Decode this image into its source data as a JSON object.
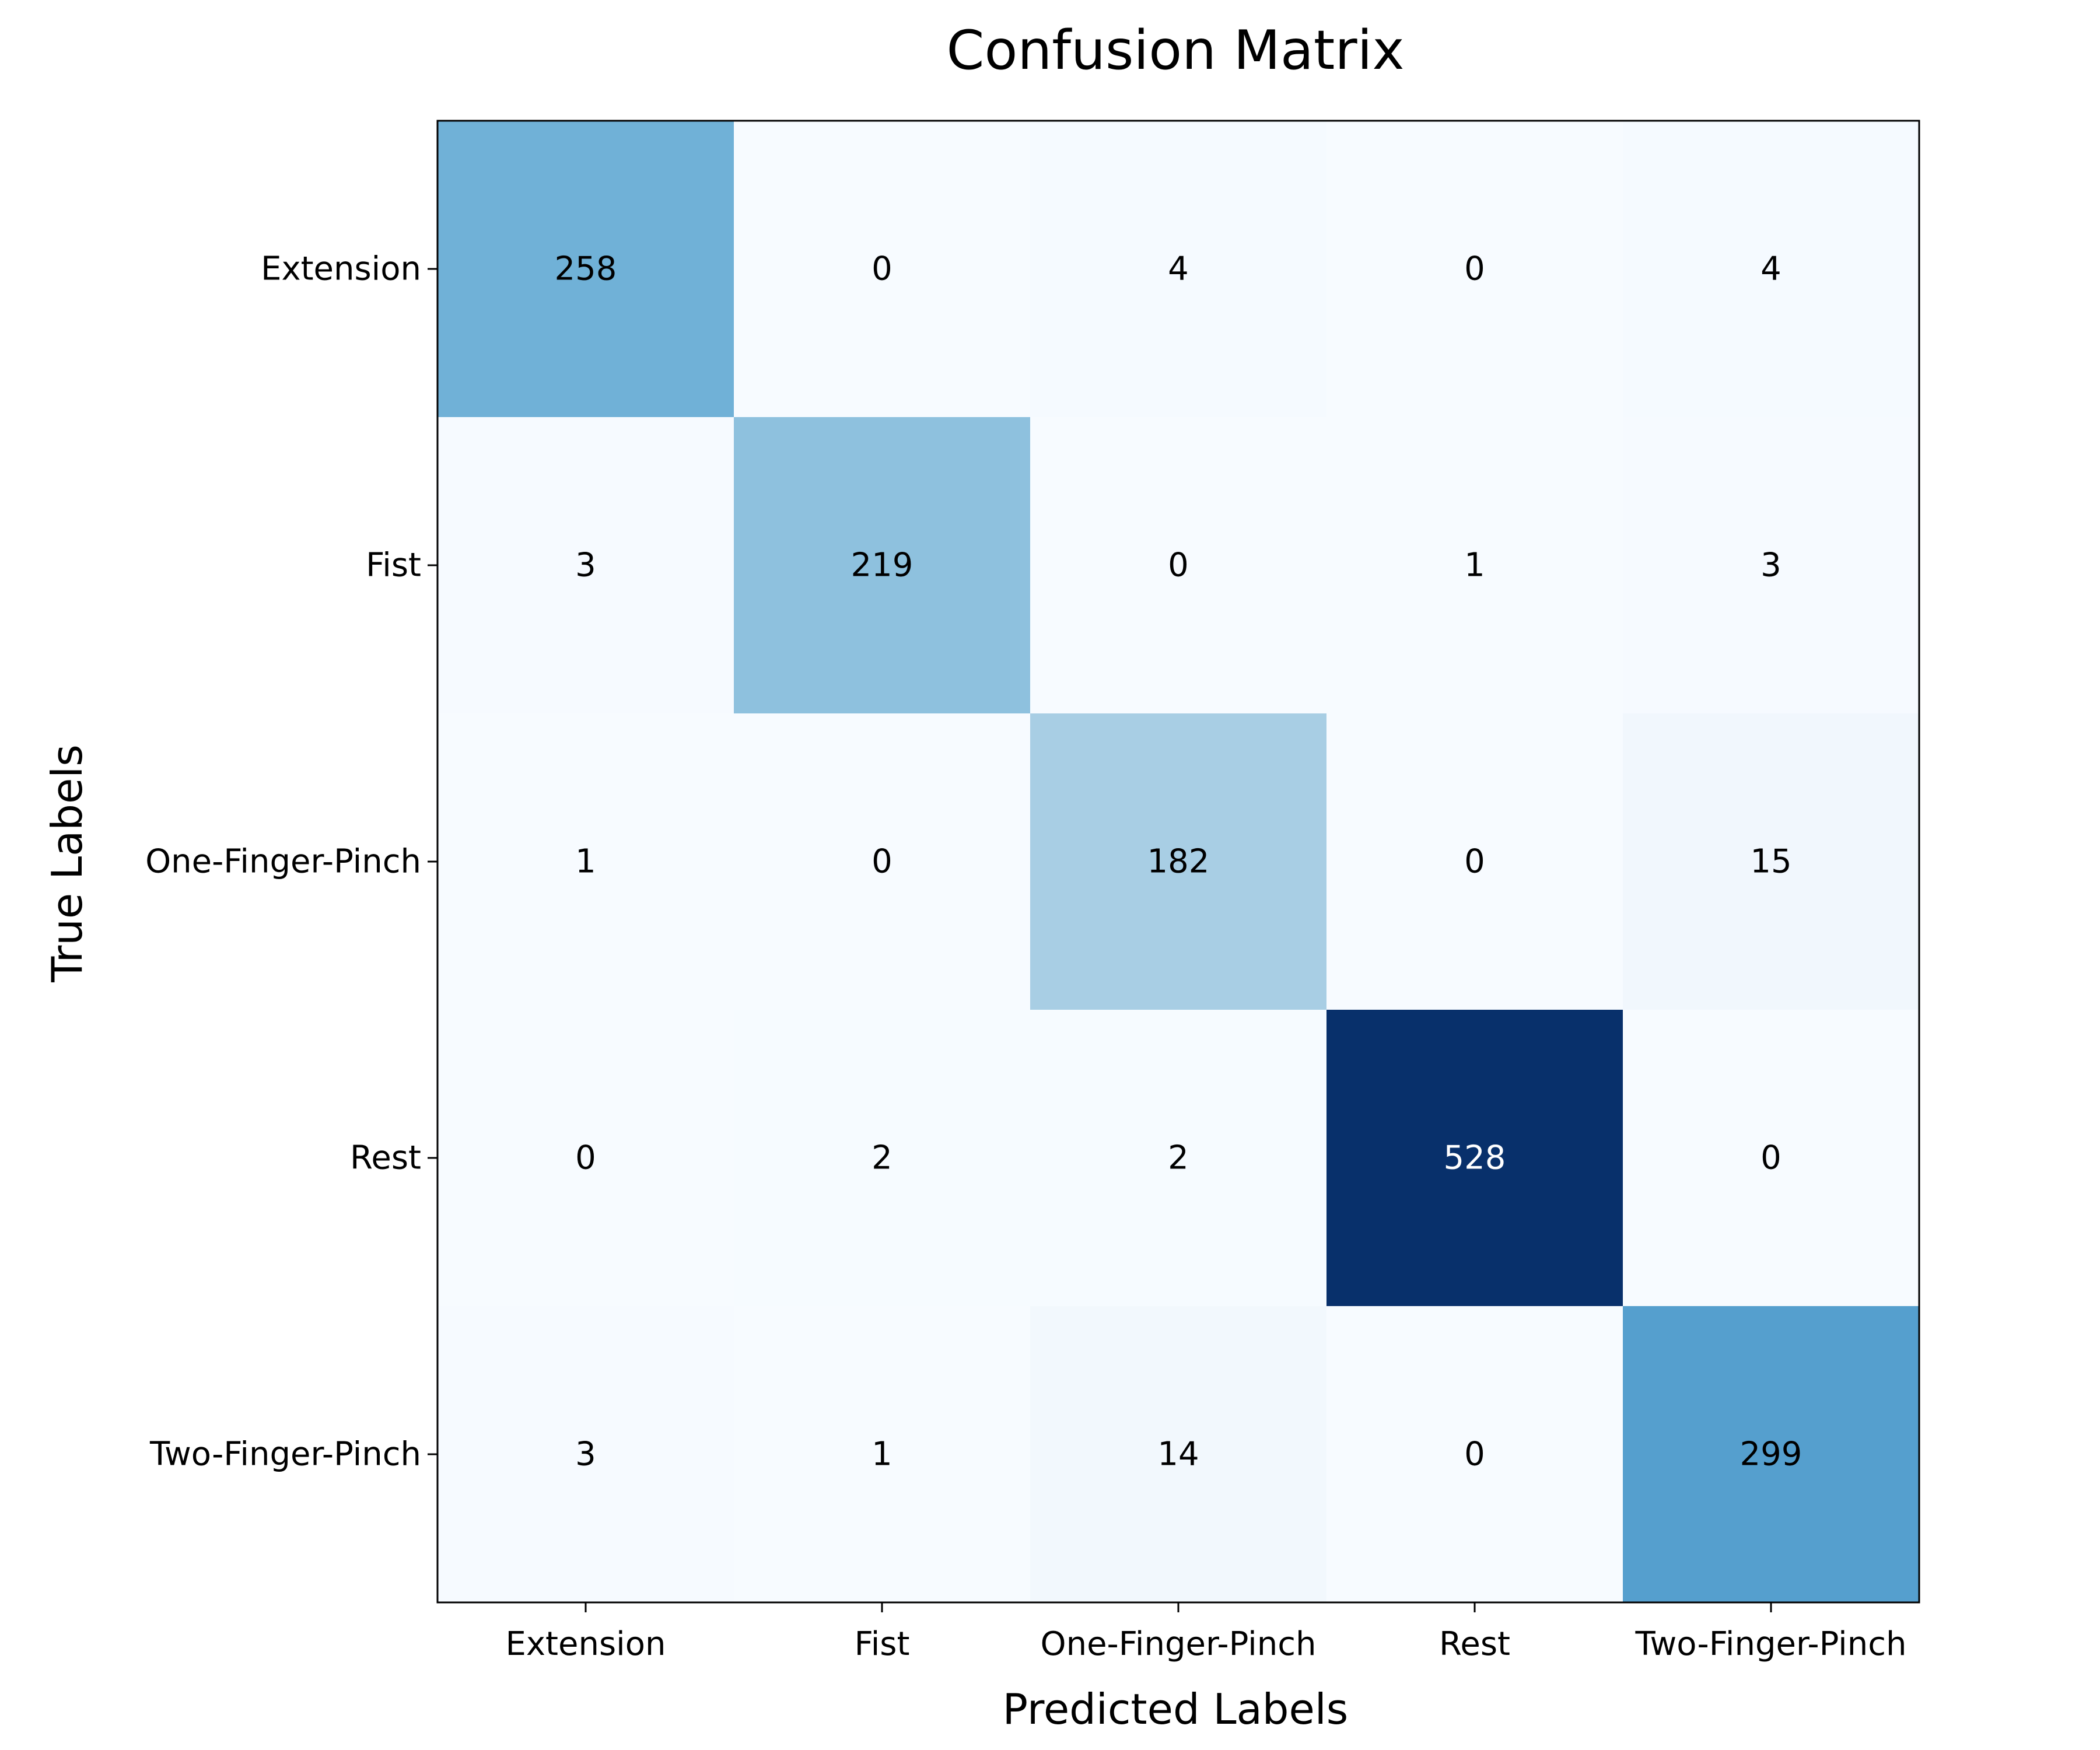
{
  "chart_data": {
    "type": "heatmap",
    "title": "Confusion Matrix",
    "xlabel": "Predicted Labels",
    "ylabel": "True Labels",
    "x_categories": [
      "Extension",
      "Fist",
      "One-Finger-Pinch",
      "Rest",
      "Two-Finger-Pinch"
    ],
    "y_categories": [
      "Extension",
      "Fist",
      "One-Finger-Pinch",
      "Rest",
      "Two-Finger-Pinch"
    ],
    "values": [
      [
        258,
        0,
        4,
        0,
        4
      ],
      [
        3,
        219,
        0,
        1,
        3
      ],
      [
        1,
        0,
        182,
        0,
        15
      ],
      [
        0,
        2,
        2,
        528,
        0
      ],
      [
        3,
        1,
        14,
        0,
        299
      ]
    ],
    "colormap": "Blues",
    "color_min": "#f7fbff",
    "color_max": "#08306b",
    "grid": false
  }
}
